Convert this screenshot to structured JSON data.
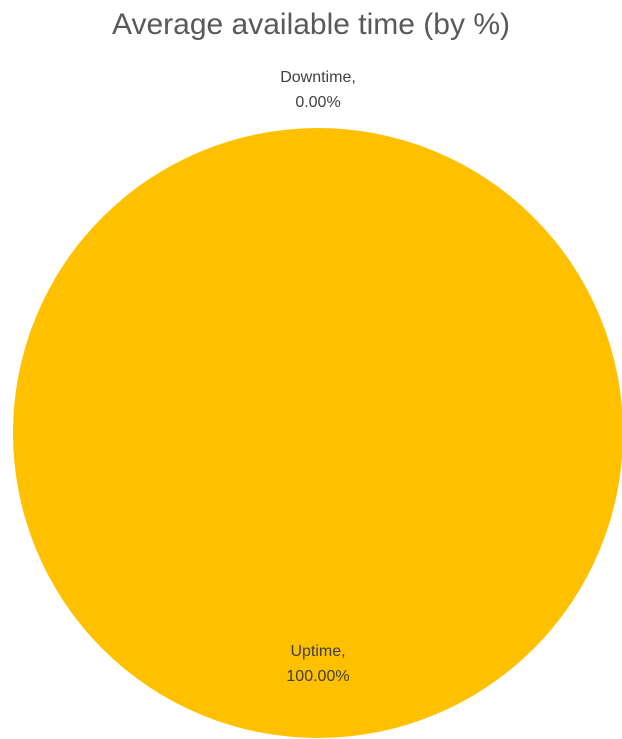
{
  "chart_data": {
    "type": "pie",
    "title": "Average available time (by %)",
    "categories": [
      "Downtime",
      "Uptime"
    ],
    "values": [
      0.0,
      100.0
    ],
    "slices": [
      {
        "name": "Downtime",
        "value": 0.0,
        "label_line1": "Downtime,",
        "label_line2": "0.00%",
        "color": "#ED7D31"
      },
      {
        "name": "Uptime",
        "value": 100.0,
        "label_line1": "Uptime,",
        "label_line2": "100.00%",
        "color": "#FFC000"
      }
    ]
  }
}
